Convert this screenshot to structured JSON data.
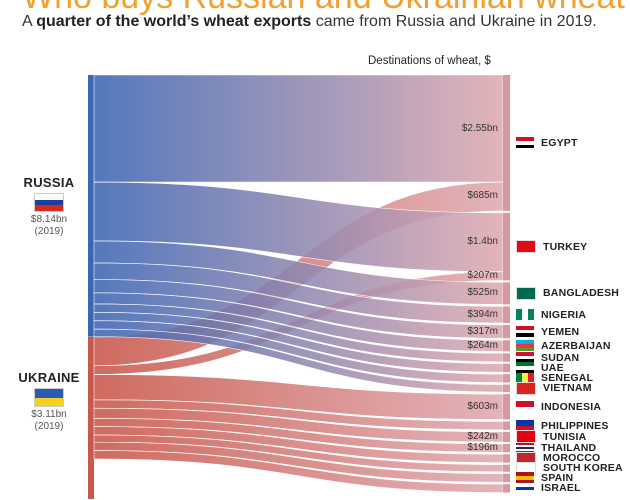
{
  "header": {
    "title": "Who buys Russian and Ukrainian wheat?",
    "subtitle_prefix": "A ",
    "subtitle_bold": "quarter of the world’s wheat exports",
    "subtitle_rest": " came from Russia and Ukraine in 2019."
  },
  "chart_data": {
    "type": "sankey",
    "dest_heading": "Destinations of wheat, $",
    "colors": {
      "russia": "#3d66b3",
      "ukraine": "#c9574a",
      "dest": "#e0aab0",
      "dest_bar": "#d49aa0"
    },
    "sources": [
      {
        "id": "russia",
        "name": "RUSSIA",
        "amount": "$8.14bn",
        "year": "(2019)",
        "flag": [
          "#ffffff",
          "#1c3f9c",
          "#d52b1e"
        ]
      },
      {
        "id": "ukraine",
        "name": "UKRAINE",
        "amount": "$3.11bn",
        "year": "(2019)",
        "flag": [
          "#2a5bb5",
          "#f5d020"
        ]
      }
    ],
    "destinations": [
      {
        "name": "EGYPT",
        "flag": [
          "#ce1126",
          "#ffffff",
          "#000000"
        ]
      },
      {
        "name": "TURKEY",
        "flag": [
          "#e30a17"
        ]
      },
      {
        "name": "BANGLADESH",
        "flag": [
          "#006a4e"
        ]
      },
      {
        "name": "NIGERIA",
        "flag": [
          "#008751",
          "#ffffff",
          "#008751"
        ],
        "vertical": true
      },
      {
        "name": "YEMEN",
        "flag": [
          "#ce1126",
          "#ffffff",
          "#000000"
        ]
      },
      {
        "name": "AZERBAIJAN",
        "flag": [
          "#00b5e2",
          "#ef3340",
          "#509e2f"
        ]
      },
      {
        "name": "SUDAN",
        "flag": [
          "#d21034",
          "#ffffff",
          "#000000"
        ]
      },
      {
        "name": "UAE",
        "flag": [
          "#00732f",
          "#ffffff",
          "#000000"
        ]
      },
      {
        "name": "SENEGAL",
        "flag": [
          "#00853f",
          "#fdef42",
          "#e31b23"
        ],
        "vertical": true
      },
      {
        "name": "VIETNAM",
        "flag": [
          "#da251d"
        ]
      },
      {
        "name": "INDONESIA",
        "flag": [
          "#ce1126",
          "#ffffff"
        ]
      },
      {
        "name": "PHILIPPINES",
        "flag": [
          "#0038a8",
          "#ce1126"
        ]
      },
      {
        "name": "TUNISIA",
        "flag": [
          "#e70013"
        ]
      },
      {
        "name": "THAILAND",
        "flag": [
          "#a51931",
          "#f4f5f8",
          "#2d2a4a",
          "#f4f5f8",
          "#a51931"
        ]
      },
      {
        "name": "MOROCCO",
        "flag": [
          "#c1272d"
        ]
      },
      {
        "name": "SOUTH KOREA",
        "flag": [
          "#ffffff"
        ]
      },
      {
        "name": "SPAIN",
        "flag": [
          "#aa151b",
          "#f1bf00",
          "#aa151b"
        ]
      },
      {
        "name": "ISRAEL",
        "flag": [
          "#ffffff",
          "#0038b8",
          "#ffffff"
        ]
      }
    ],
    "flows": [
      {
        "source": "russia",
        "target": "EGYPT",
        "value_bn": 2.55,
        "label": "$2.55bn"
      },
      {
        "source": "ukraine",
        "target": "EGYPT",
        "value_bn": 0.685,
        "label": "$685m"
      },
      {
        "source": "russia",
        "target": "TURKEY",
        "value_bn": 1.4,
        "label": "$1.4bn"
      },
      {
        "source": "ukraine",
        "target": "TURKEY",
        "value_bn": 0.207,
        "label": "$207m"
      },
      {
        "source": "russia",
        "target": "BANGLADESH",
        "value_bn": 0.525,
        "label": "$525m"
      },
      {
        "source": "russia",
        "target": "NIGERIA",
        "value_bn": 0.394,
        "label": "$394m"
      },
      {
        "source": "russia",
        "target": "YEMEN",
        "value_bn": 0.317,
        "label": "$317m"
      },
      {
        "source": "russia",
        "target": "AZERBAIJAN",
        "value_bn": 0.264,
        "label": "$264m"
      },
      {
        "source": "russia",
        "target": "SUDAN",
        "value_bn": 0.2
      },
      {
        "source": "russia",
        "target": "UAE",
        "value_bn": 0.2
      },
      {
        "source": "russia",
        "target": "SENEGAL",
        "value_bn": 0.2
      },
      {
        "source": "russia",
        "target": "VIETNAM",
        "value_bn": 0.18
      },
      {
        "source": "ukraine",
        "target": "INDONESIA",
        "value_bn": 0.603,
        "label": "$603m"
      },
      {
        "source": "ukraine",
        "target": "PHILIPPINES",
        "value_bn": 0.2
      },
      {
        "source": "ukraine",
        "target": "TUNISIA",
        "value_bn": 0.242,
        "label": "$242m"
      },
      {
        "source": "ukraine",
        "target": "THAILAND",
        "value_bn": 0.196,
        "label": "$196m"
      },
      {
        "source": "ukraine",
        "target": "MOROCCO",
        "value_bn": 0.2
      },
      {
        "source": "ukraine",
        "target": "SOUTH KOREA",
        "value_bn": 0.17
      },
      {
        "source": "ukraine",
        "target": "SPAIN",
        "value_bn": 0.2
      },
      {
        "source": "ukraine",
        "target": "ISRAEL",
        "value_bn": 0.2
      }
    ]
  }
}
